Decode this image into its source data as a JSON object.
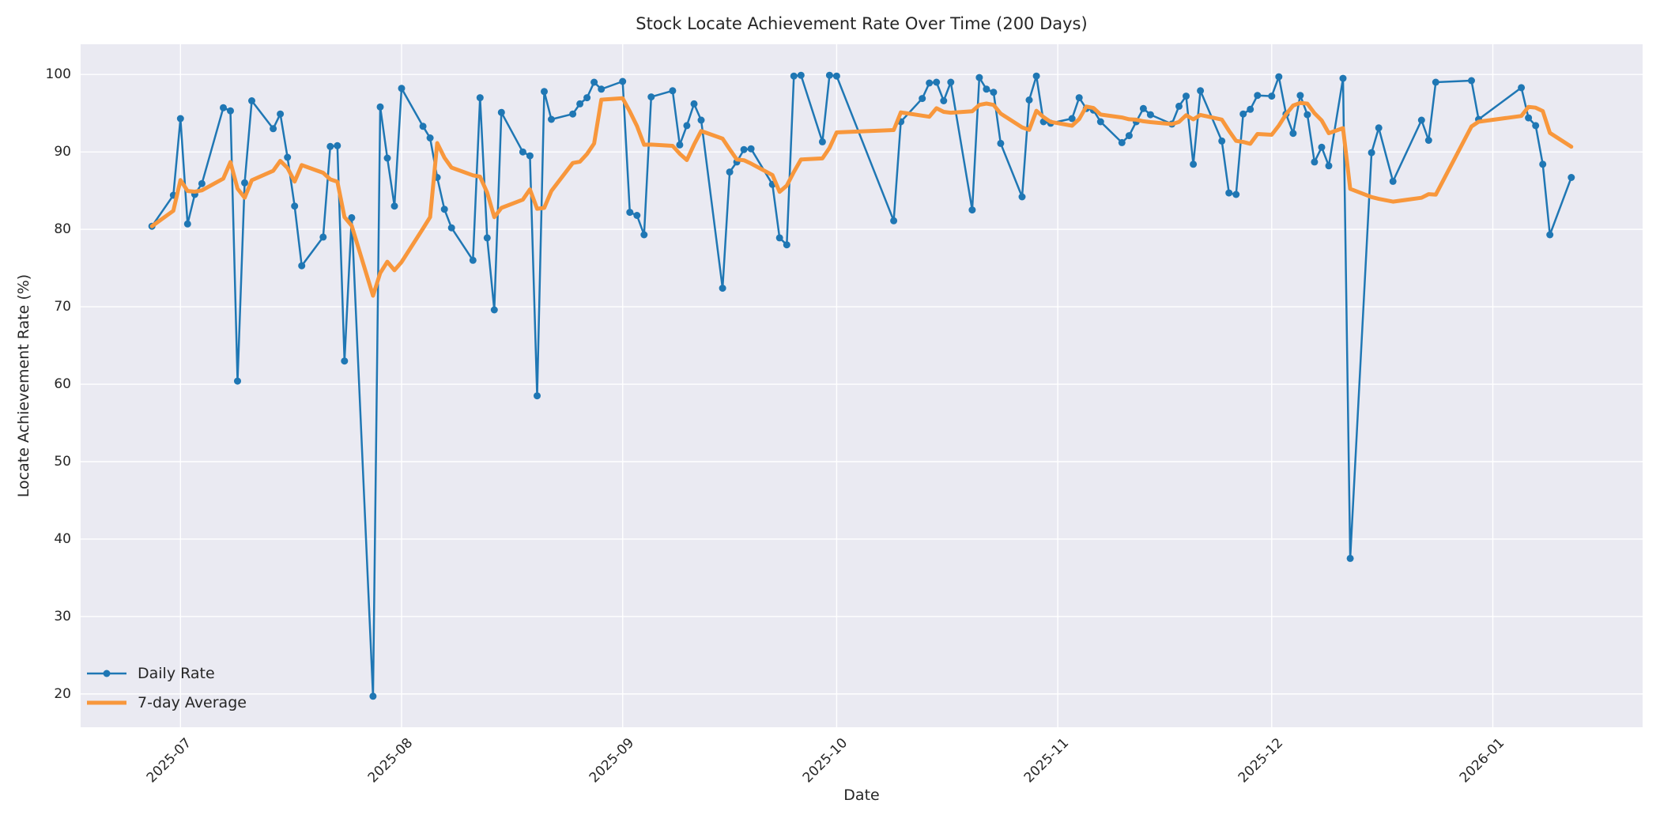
{
  "chart_data": {
    "type": "line",
    "title": "Stock Locate Achievement Rate Over Time (200 Days)",
    "xlabel": "Date",
    "ylabel": "Locate Achievement Rate (%)",
    "x_start_date": "2025-06-27",
    "xlim_days": [
      -10,
      209
    ],
    "ylim": [
      15.7,
      103.9
    ],
    "yticks": [
      20,
      30,
      40,
      50,
      60,
      70,
      80,
      90,
      100
    ],
    "xticks": [
      {
        "label": "2025-07",
        "day": 4
      },
      {
        "label": "2025-08",
        "day": 35
      },
      {
        "label": "2025-09",
        "day": 66
      },
      {
        "label": "2025-10",
        "day": 96
      },
      {
        "label": "2025-11",
        "day": 127
      },
      {
        "label": "2025-12",
        "day": 157
      },
      {
        "label": "2026-01",
        "day": 188
      }
    ],
    "grid": true,
    "background_color": "#eaeaf2",
    "grid_color": "#ffffff",
    "legend_position": "lower-left",
    "series": [
      {
        "name": "Daily Rate",
        "color": "#1f77b4",
        "line_width": 2.5,
        "marker": "dot",
        "marker_radius": 4.5,
        "points": [
          [
            "2025-06-27",
            80.4
          ],
          [
            "2025-06-30",
            84.4
          ],
          [
            "2025-07-01",
            94.3
          ],
          [
            "2025-07-02",
            80.7
          ],
          [
            "2025-07-03",
            84.5
          ],
          [
            "2025-07-04",
            85.9
          ],
          [
            "2025-07-07",
            95.7
          ],
          [
            "2025-07-08",
            95.3
          ],
          [
            "2025-07-09",
            60.4
          ],
          [
            "2025-07-10",
            86.0
          ],
          [
            "2025-07-11",
            96.6
          ],
          [
            "2025-07-14",
            93.0
          ],
          [
            "2025-07-15",
            94.9
          ],
          [
            "2025-07-16",
            89.3
          ],
          [
            "2025-07-17",
            83.0
          ],
          [
            "2025-07-18",
            75.3
          ],
          [
            "2025-07-21",
            79.0
          ],
          [
            "2025-07-22",
            90.7
          ],
          [
            "2025-07-23",
            90.8
          ],
          [
            "2025-07-24",
            63.0
          ],
          [
            "2025-07-25",
            81.5
          ],
          [
            "2025-07-28",
            19.7
          ],
          [
            "2025-07-29",
            95.8
          ],
          [
            "2025-07-30",
            89.2
          ],
          [
            "2025-07-31",
            83.0
          ],
          [
            "2025-08-01",
            98.2
          ],
          [
            "2025-08-04",
            93.3
          ],
          [
            "2025-08-05",
            91.8
          ],
          [
            "2025-08-06",
            86.7
          ],
          [
            "2025-08-07",
            82.6
          ],
          [
            "2025-08-08",
            80.2
          ],
          [
            "2025-08-11",
            76.0
          ],
          [
            "2025-08-12",
            97.0
          ],
          [
            "2025-08-13",
            78.9
          ],
          [
            "2025-08-14",
            69.6
          ],
          [
            "2025-08-15",
            95.1
          ],
          [
            "2025-08-18",
            90.0
          ],
          [
            "2025-08-19",
            89.5
          ],
          [
            "2025-08-20",
            58.5
          ],
          [
            "2025-08-21",
            97.8
          ],
          [
            "2025-08-22",
            94.2
          ],
          [
            "2025-08-25",
            94.9
          ],
          [
            "2025-08-26",
            96.2
          ],
          [
            "2025-08-27",
            97.0
          ],
          [
            "2025-08-28",
            99.0
          ],
          [
            "2025-08-29",
            98.1
          ],
          [
            "2025-09-01",
            99.1
          ],
          [
            "2025-09-02",
            82.2
          ],
          [
            "2025-09-03",
            81.8
          ],
          [
            "2025-09-04",
            79.3
          ],
          [
            "2025-09-05",
            97.1
          ],
          [
            "2025-09-08",
            97.9
          ],
          [
            "2025-09-09",
            90.9
          ],
          [
            "2025-09-10",
            93.4
          ],
          [
            "2025-09-11",
            96.2
          ],
          [
            "2025-09-12",
            94.1
          ],
          [
            "2025-09-15",
            72.4
          ],
          [
            "2025-09-16",
            87.4
          ],
          [
            "2025-09-17",
            88.7
          ],
          [
            "2025-09-18",
            90.3
          ],
          [
            "2025-09-19",
            90.4
          ],
          [
            "2025-09-22",
            85.8
          ],
          [
            "2025-09-23",
            78.9
          ],
          [
            "2025-09-24",
            78.0
          ],
          [
            "2025-09-25",
            99.8
          ],
          [
            "2025-09-26",
            99.9
          ],
          [
            "2025-09-29",
            91.3
          ],
          [
            "2025-09-30",
            99.9
          ],
          [
            "2025-10-01",
            99.8
          ],
          [
            "2025-10-09",
            81.1
          ],
          [
            "2025-10-10",
            93.9
          ],
          [
            "2025-10-13",
            96.9
          ],
          [
            "2025-10-14",
            98.9
          ],
          [
            "2025-10-15",
            99.0
          ],
          [
            "2025-10-16",
            96.6
          ],
          [
            "2025-10-17",
            99.0
          ],
          [
            "2025-10-20",
            82.5
          ],
          [
            "2025-10-21",
            99.6
          ],
          [
            "2025-10-22",
            98.1
          ],
          [
            "2025-10-23",
            97.7
          ],
          [
            "2025-10-24",
            91.1
          ],
          [
            "2025-10-27",
            84.2
          ],
          [
            "2025-10-28",
            96.7
          ],
          [
            "2025-10-29",
            99.8
          ],
          [
            "2025-10-30",
            93.9
          ],
          [
            "2025-10-31",
            93.7
          ],
          [
            "2025-11-03",
            94.3
          ],
          [
            "2025-11-04",
            97.0
          ],
          [
            "2025-11-05",
            95.6
          ],
          [
            "2025-11-06",
            95.4
          ],
          [
            "2025-11-07",
            93.9
          ],
          [
            "2025-11-10",
            91.2
          ],
          [
            "2025-11-11",
            92.1
          ],
          [
            "2025-11-12",
            93.9
          ],
          [
            "2025-11-13",
            95.6
          ],
          [
            "2025-11-14",
            94.8
          ],
          [
            "2025-11-17",
            93.6
          ],
          [
            "2025-11-18",
            95.9
          ],
          [
            "2025-11-19",
            97.2
          ],
          [
            "2025-11-20",
            88.4
          ],
          [
            "2025-11-21",
            97.9
          ],
          [
            "2025-11-24",
            91.4
          ],
          [
            "2025-11-25",
            84.7
          ],
          [
            "2025-11-26",
            84.5
          ],
          [
            "2025-11-27",
            94.9
          ],
          [
            "2025-11-28",
            95.5
          ],
          [
            "2025-11-29",
            97.3
          ],
          [
            "2025-12-01",
            97.2
          ],
          [
            "2025-12-02",
            99.7
          ],
          [
            "2025-12-03",
            94.9
          ],
          [
            "2025-12-04",
            92.4
          ],
          [
            "2025-12-05",
            97.3
          ],
          [
            "2025-12-06",
            94.8
          ],
          [
            "2025-12-07",
            88.7
          ],
          [
            "2025-12-08",
            90.6
          ],
          [
            "2025-12-09",
            88.2
          ],
          [
            "2025-12-11",
            99.5
          ],
          [
            "2025-12-12",
            37.5
          ],
          [
            "2025-12-15",
            89.9
          ],
          [
            "2025-12-16",
            93.1
          ],
          [
            "2025-12-18",
            86.2
          ],
          [
            "2025-12-22",
            94.1
          ],
          [
            "2025-12-23",
            91.5
          ],
          [
            "2025-12-24",
            99.0
          ],
          [
            "2025-12-29",
            99.2
          ],
          [
            "2025-12-30",
            94.2
          ],
          [
            "2026-01-05",
            98.3
          ],
          [
            "2026-01-06",
            94.4
          ],
          [
            "2026-01-07",
            93.4
          ],
          [
            "2026-01-08",
            88.4
          ],
          [
            "2026-01-09",
            79.3
          ],
          [
            "2026-01-12",
            86.7
          ]
        ]
      },
      {
        "name": "7-day Average",
        "color": "#f8973c",
        "line_width": 5,
        "marker": "none",
        "derived": "rolling_mean_window_7_min_periods_1_of_daily_rate"
      }
    ]
  }
}
